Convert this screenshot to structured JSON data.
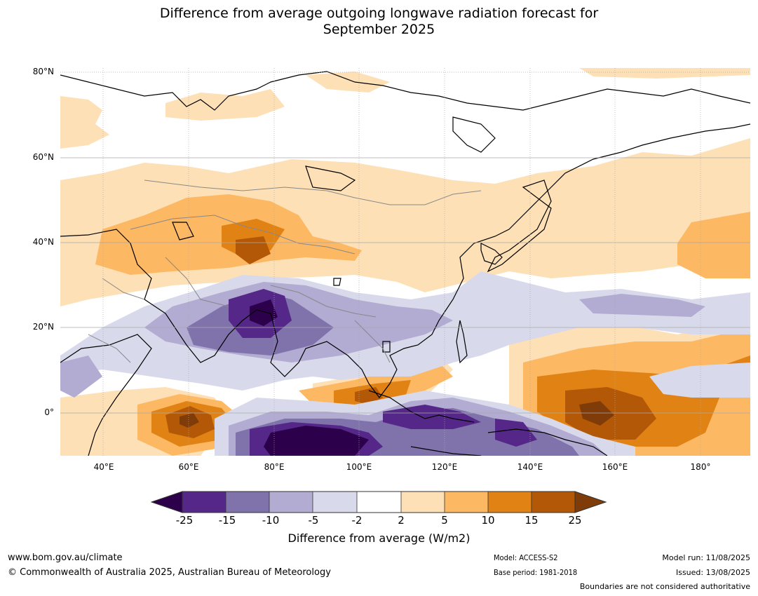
{
  "title_line1": "Difference from average outgoing longwave radiation forecast for",
  "title_line2": "September 2025",
  "map": {
    "lat_labels": [
      "80°N",
      "60°N",
      "40°N",
      "20°N",
      "0°"
    ],
    "lon_labels": [
      "40°E",
      "60°E",
      "80°E",
      "100°E",
      "120°E",
      "140°E",
      "160°E",
      "180°"
    ],
    "extent": {
      "lon_min": 30,
      "lon_max": 191,
      "lat_min": -10,
      "lat_max": 81
    }
  },
  "colorbar": {
    "ticks": [
      "-25",
      "-15",
      "-10",
      "-5",
      "-2",
      "2",
      "5",
      "10",
      "15",
      "25"
    ],
    "label": "Difference from average (W/m2)",
    "colors": {
      "below_-25": "#2d004b",
      "-25_-15": "#542788",
      "-15_-10": "#8073ac",
      "-10_-5": "#b2abd2",
      "-5_-2": "#d8daeb",
      "-2_2": "#ffffff",
      "2_5": "#fee0b6",
      "5_10": "#fdb863",
      "10_15": "#e08214",
      "15_25": "#b35806",
      "above_25": "#7f3b08"
    }
  },
  "footer": {
    "website": "www.bom.gov.au/climate",
    "copyright": "© Commonwealth of Australia 2025, Australian Bureau of Meteorology",
    "model": "Model: ACCESS-S2",
    "base_period": "Base period: 1981-2018",
    "model_run": "Model run: 11/08/2025",
    "issued": "Issued: 13/08/2025",
    "disclaimer": "Boundaries are not considered authoritative"
  }
}
